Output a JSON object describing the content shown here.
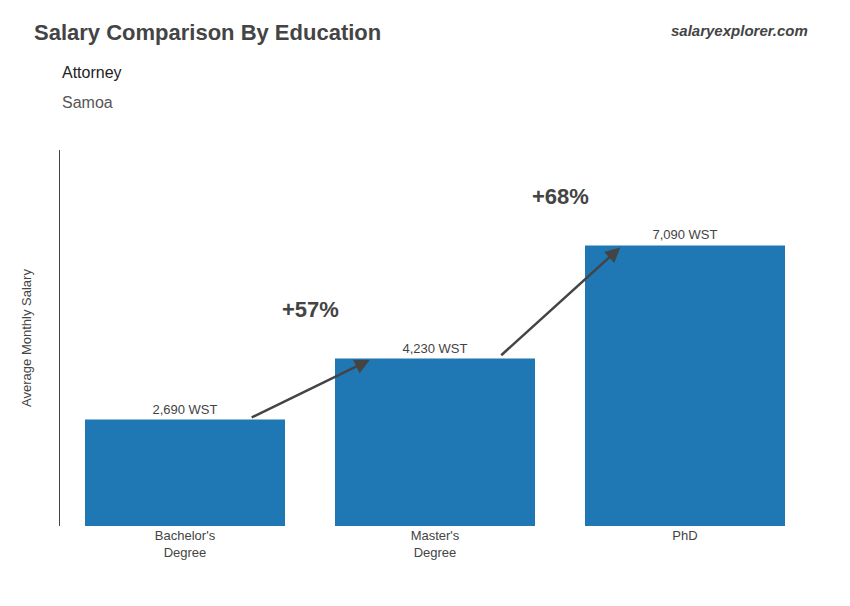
{
  "chart_data": {
    "type": "bar",
    "title": "Salary Comparison By Education",
    "subtitle": [
      "Attorney",
      "Samoa"
    ],
    "categories": [
      "Bachelor's\nDegree",
      "Master's\nDegree",
      "PhD"
    ],
    "values": [
      2690,
      4230,
      7090
    ],
    "value_labels": [
      "2,690 WST",
      "4,230 WST",
      "7,090 WST"
    ],
    "data_labels": true,
    "ylabel": "Average Monthly Salary",
    "ylim": [
      0,
      9500
    ],
    "tick_labels": "x",
    "grid": false,
    "annotations": [
      {
        "text": "+57%",
        "from": "Bachelor's\nDegree",
        "to": "Master's\nDegree"
      },
      {
        "text": "+68%",
        "from": "Master's\nDegree",
        "to": "PhD"
      },
      {
        "text": "salaryexplorer.com"
      }
    ]
  }
}
